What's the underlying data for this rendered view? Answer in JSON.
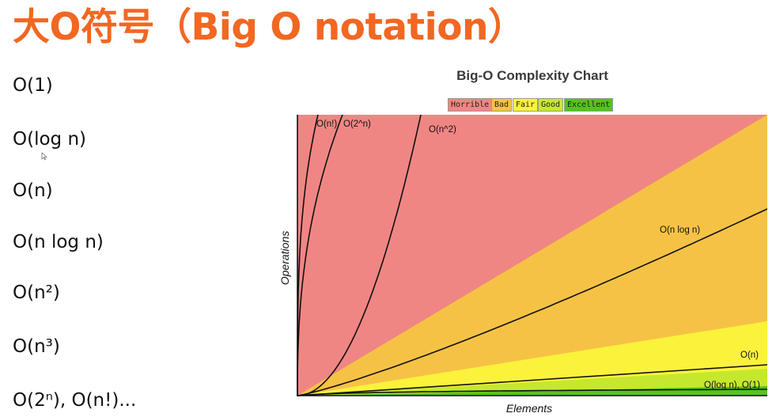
{
  "slide": {
    "title": "大O符号（Big O notation）",
    "title_color": "#f26722"
  },
  "notations": [
    {
      "text": "O(1)"
    },
    {
      "text": "O(log n)"
    },
    {
      "text": "O(n)"
    },
    {
      "text": "O(n log n)"
    },
    {
      "text": "O(n²)"
    },
    {
      "text": "O(n³)"
    },
    {
      "text": "O(2ⁿ), O(n!)..."
    }
  ],
  "chart_data": {
    "type": "area",
    "title": "Big-O Complexity Chart",
    "xlabel": "Elements",
    "ylabel": "Operations",
    "legend": [
      {
        "label": "Horrible",
        "color": "#f08683"
      },
      {
        "label": "Bad",
        "color": "#f6c246"
      },
      {
        "label": "Fair",
        "color": "#fbf23b"
      },
      {
        "label": "Good",
        "color": "#c5e82e"
      },
      {
        "label": "Excellent",
        "color": "#53c41c"
      }
    ],
    "legend_placement": "top-center",
    "curve_labels": {
      "factorial": "O(n!)",
      "exponential": "O(2^n)",
      "quadratic": "O(n^2)",
      "nlogn": "O(n log n)",
      "linear": "O(n)",
      "log_const": "O(log n), O(1)"
    },
    "grid": false
  }
}
